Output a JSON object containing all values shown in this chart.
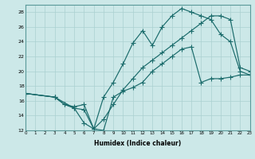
{
  "xlabel": "Humidex (Indice chaleur)",
  "bg_color": "#cce8e8",
  "grid_color": "#aad0d0",
  "line_color": "#1a6b6b",
  "xlim": [
    0,
    23
  ],
  "ylim": [
    12,
    29
  ],
  "xticks": [
    0,
    1,
    2,
    3,
    4,
    5,
    6,
    7,
    8,
    9,
    10,
    11,
    12,
    13,
    14,
    15,
    16,
    17,
    18,
    19,
    20,
    21,
    22,
    23
  ],
  "yticks": [
    12,
    14,
    16,
    18,
    20,
    22,
    24,
    26,
    28
  ],
  "line1_x": [
    0,
    3,
    4,
    5,
    6,
    7,
    8,
    9,
    10,
    11,
    12,
    13,
    14,
    15,
    16,
    17,
    18,
    19,
    20,
    21,
    22,
    23
  ],
  "line1_y": [
    17.0,
    16.5,
    15.5,
    15.0,
    14.8,
    12.2,
    12.0,
    16.5,
    17.3,
    17.8,
    18.5,
    20.0,
    21.0,
    22.0,
    23.0,
    23.3,
    18.5,
    19.0,
    19.0,
    19.2,
    19.5,
    19.5
  ],
  "line2_x": [
    0,
    3,
    4,
    5,
    6,
    7,
    8,
    9,
    10,
    11,
    12,
    13,
    14,
    15,
    16,
    17,
    18,
    19,
    20,
    21,
    22,
    23
  ],
  "line2_y": [
    17.0,
    16.5,
    15.5,
    15.2,
    15.5,
    12.2,
    16.5,
    18.5,
    21.0,
    23.8,
    25.5,
    23.5,
    26.0,
    27.5,
    28.5,
    28.0,
    27.5,
    27.0,
    25.0,
    24.0,
    20.0,
    19.5
  ],
  "line3_x": [
    0,
    3,
    5,
    6,
    7,
    8,
    9,
    10,
    11,
    12,
    13,
    14,
    15,
    16,
    17,
    18,
    19,
    20,
    21,
    22,
    23
  ],
  "line3_y": [
    17.0,
    16.5,
    15.0,
    13.0,
    12.2,
    13.5,
    15.5,
    17.5,
    19.0,
    20.5,
    21.5,
    22.5,
    23.5,
    24.5,
    25.5,
    26.5,
    27.5,
    27.5,
    27.0,
    20.5,
    20.0
  ]
}
